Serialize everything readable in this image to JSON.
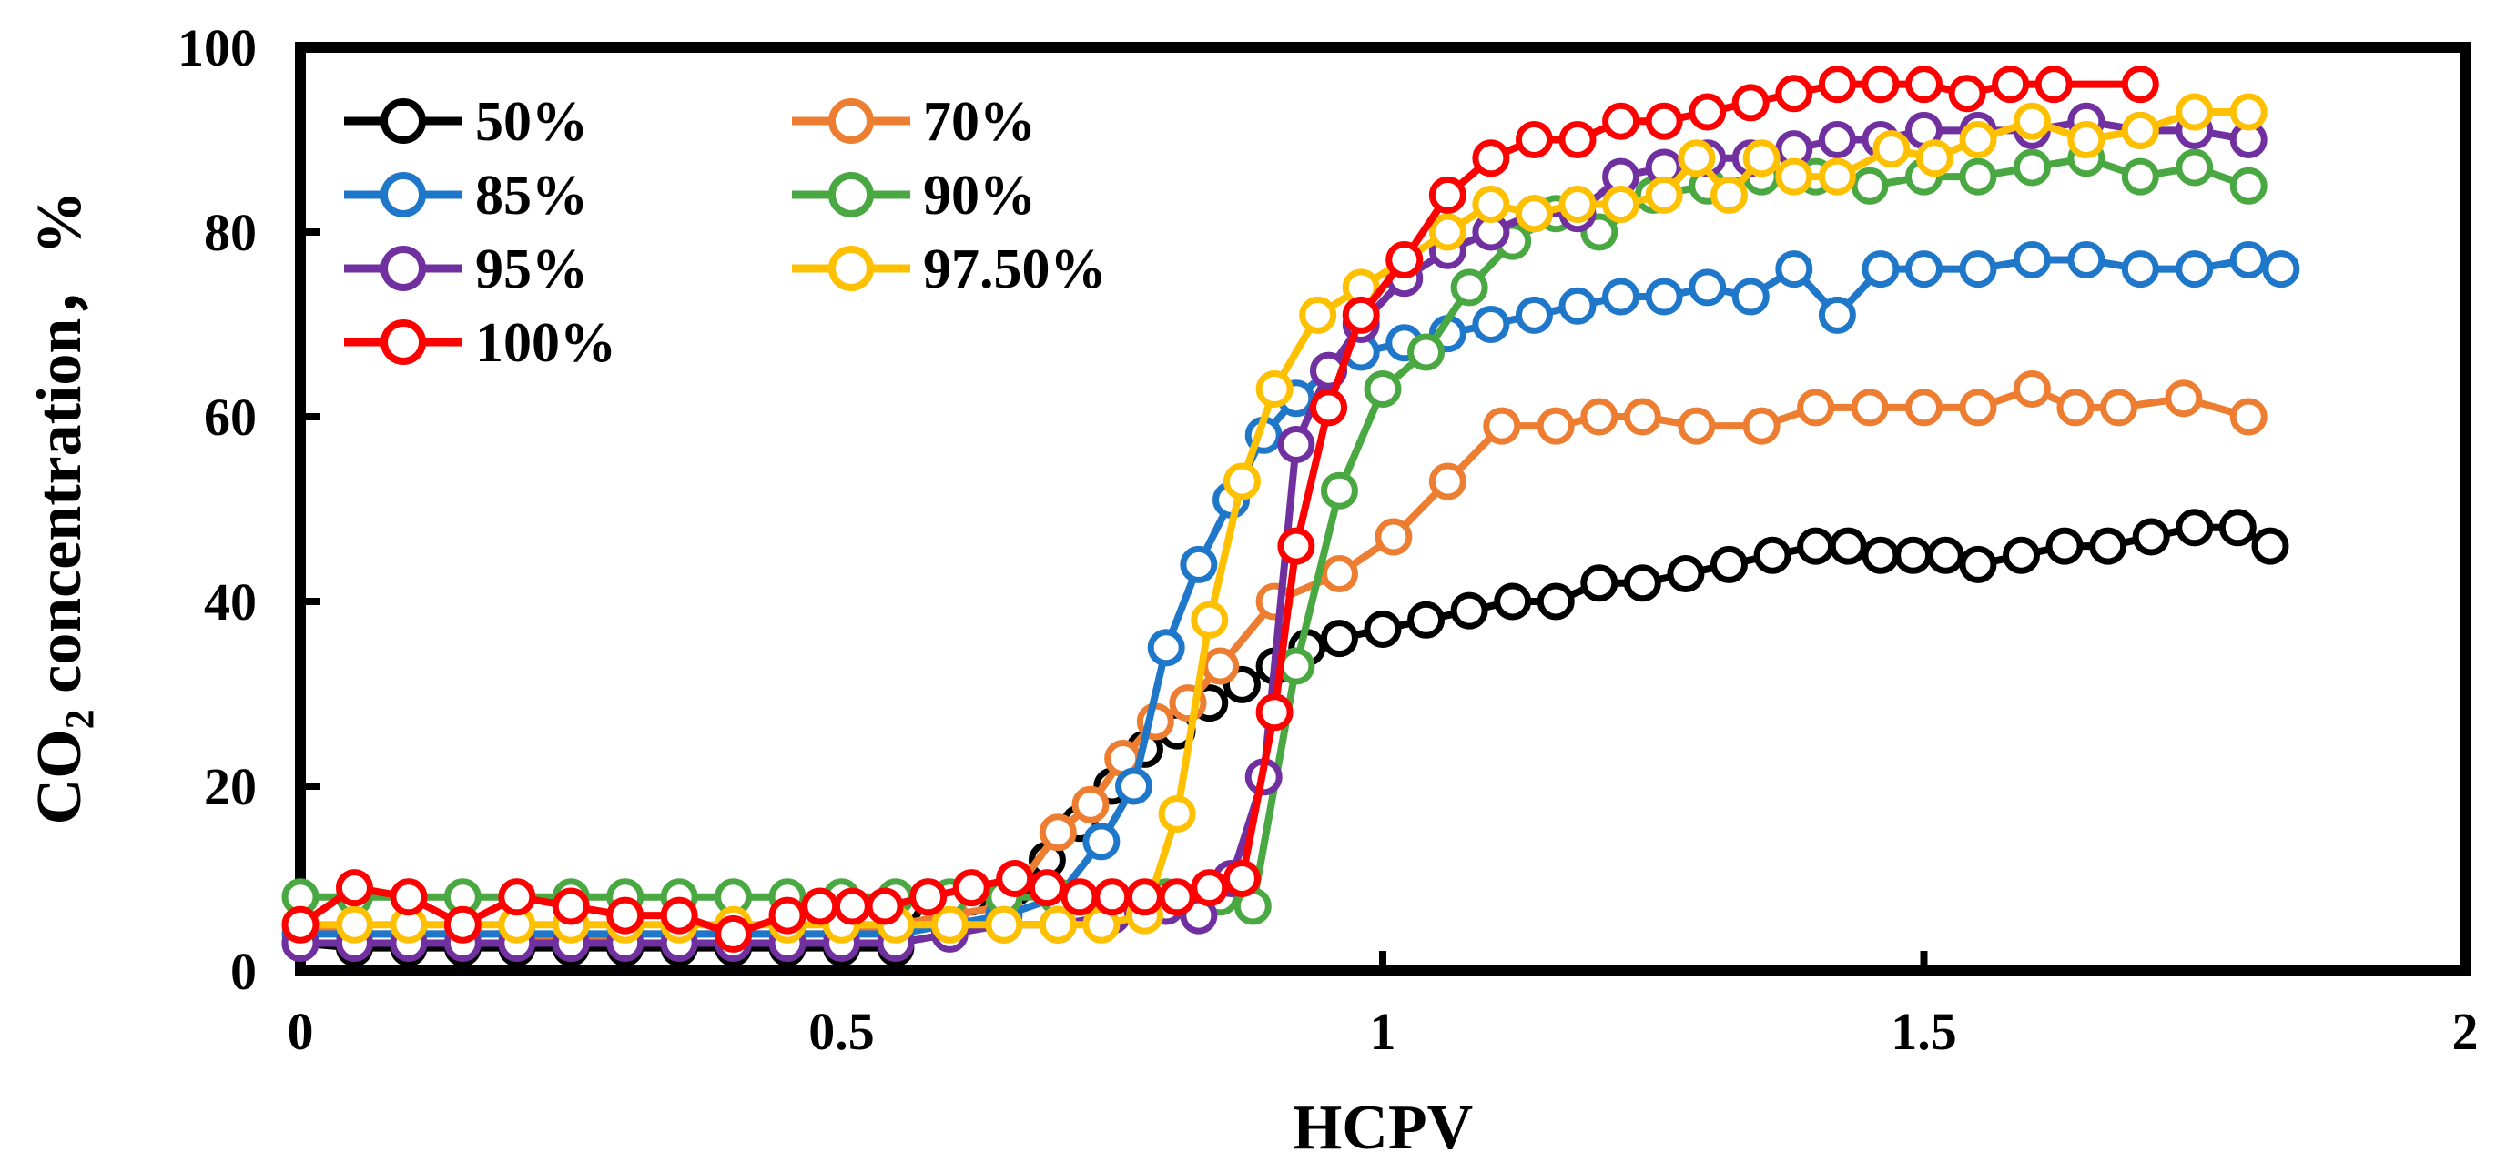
{
  "chart_data": {
    "type": "line",
    "title": "",
    "xlabel": "HCPV",
    "ylabel_main": "CO",
    "ylabel_sub": "2",
    "ylabel_rest": " concentration，%",
    "xlim": [
      0,
      2
    ],
    "ylim": [
      0,
      100
    ],
    "xticks": [
      0,
      0.5,
      1,
      1.5,
      2
    ],
    "xtick_labels": [
      "0",
      "0.5",
      "1",
      "1.5",
      "2"
    ],
    "yticks": [
      0,
      20,
      40,
      60,
      80,
      100
    ],
    "ytick_labels": [
      "0",
      "20",
      "40",
      "60",
      "80",
      "100"
    ],
    "legend_position": "top-left",
    "series": [
      {
        "name": "50%",
        "color": "#000000",
        "x": [
          0,
          0.05,
          0.1,
          0.15,
          0.2,
          0.25,
          0.3,
          0.35,
          0.4,
          0.45,
          0.5,
          0.55,
          0.58,
          0.62,
          0.66,
          0.69,
          0.72,
          0.75,
          0.78,
          0.81,
          0.84,
          0.87,
          0.9,
          0.93,
          0.96,
          1.0,
          1.04,
          1.08,
          1.12,
          1.16,
          1.2,
          1.24,
          1.28,
          1.32,
          1.36,
          1.4,
          1.43,
          1.46,
          1.49,
          1.52,
          1.55,
          1.59,
          1.63,
          1.67,
          1.71,
          1.75,
          1.79,
          1.82
        ],
        "values": [
          3,
          2.5,
          2.5,
          2.5,
          2.5,
          2.5,
          2.5,
          2.5,
          2.5,
          2.5,
          2.5,
          2.5,
          8,
          8,
          9,
          12,
          16,
          20,
          24,
          26,
          29,
          31,
          33,
          35,
          36,
          37,
          38,
          39,
          40,
          40,
          42,
          42,
          43,
          44,
          45,
          46,
          46,
          45,
          45,
          45,
          44,
          45,
          46,
          46,
          47,
          48,
          48,
          46
        ]
      },
      {
        "name": "70%",
        "color": "#ED7D31",
        "x": [
          0,
          0.05,
          0.1,
          0.15,
          0.2,
          0.25,
          0.3,
          0.35,
          0.4,
          0.45,
          0.5,
          0.55,
          0.6,
          0.65,
          0.7,
          0.73,
          0.76,
          0.79,
          0.82,
          0.85,
          0.9,
          0.96,
          1.01,
          1.06,
          1.11,
          1.16,
          1.2,
          1.24,
          1.29,
          1.35,
          1.4,
          1.45,
          1.5,
          1.55,
          1.6,
          1.64,
          1.68,
          1.74,
          1.8
        ],
        "values": [
          5,
          4,
          4,
          4,
          4,
          3,
          4,
          4,
          4,
          4,
          4,
          5,
          6,
          7,
          15,
          18,
          23,
          27,
          29,
          33,
          40,
          43,
          47,
          53,
          59,
          59,
          60,
          60,
          59,
          59,
          61,
          61,
          61,
          61,
          63,
          61,
          61,
          62,
          60
        ]
      },
      {
        "name": "85%",
        "color": "#1F77C9",
        "x": [
          0,
          0.05,
          0.1,
          0.15,
          0.2,
          0.25,
          0.3,
          0.35,
          0.4,
          0.45,
          0.5,
          0.55,
          0.6,
          0.65,
          0.7,
          0.74,
          0.77,
          0.8,
          0.83,
          0.86,
          0.89,
          0.92,
          0.95,
          0.98,
          1.02,
          1.06,
          1.1,
          1.14,
          1.18,
          1.22,
          1.26,
          1.3,
          1.34,
          1.38,
          1.42,
          1.46,
          1.5,
          1.55,
          1.6,
          1.65,
          1.7,
          1.75,
          1.8,
          1.83
        ],
        "values": [
          4,
          4,
          4,
          4,
          4,
          4,
          4,
          4,
          4,
          4,
          4,
          4,
          5,
          6,
          8,
          14,
          20,
          35,
          44,
          51,
          58,
          62,
          65,
          67,
          68,
          69,
          70,
          71,
          72,
          73,
          73,
          74,
          73,
          76,
          71,
          76,
          76,
          76,
          77,
          77,
          76,
          76,
          77,
          76
        ]
      },
      {
        "name": "90%",
        "color": "#4AA843",
        "x": [
          0,
          0.05,
          0.1,
          0.15,
          0.2,
          0.25,
          0.3,
          0.35,
          0.4,
          0.45,
          0.5,
          0.55,
          0.6,
          0.65,
          0.7,
          0.75,
          0.8,
          0.85,
          0.88,
          0.92,
          0.96,
          1.0,
          1.04,
          1.08,
          1.12,
          1.16,
          1.2,
          1.25,
          1.3,
          1.35,
          1.4,
          1.45,
          1.5,
          1.55,
          1.6,
          1.65,
          1.7,
          1.75,
          1.8
        ],
        "values": [
          8,
          8,
          8,
          8,
          8,
          8,
          8,
          8,
          8,
          8,
          8,
          8,
          8,
          8,
          8,
          8,
          8,
          8,
          7,
          33,
          52,
          63,
          67,
          74,
          79,
          82,
          80,
          84,
          85,
          86,
          86,
          85,
          86,
          86,
          87,
          88,
          86,
          87,
          85
        ]
      },
      {
        "name": "95%",
        "color": "#7030A0",
        "x": [
          0,
          0.05,
          0.1,
          0.15,
          0.2,
          0.25,
          0.3,
          0.35,
          0.4,
          0.45,
          0.5,
          0.55,
          0.6,
          0.65,
          0.7,
          0.75,
          0.8,
          0.83,
          0.86,
          0.89,
          0.92,
          0.95,
          0.98,
          1.02,
          1.06,
          1.1,
          1.14,
          1.18,
          1.22,
          1.26,
          1.3,
          1.34,
          1.38,
          1.42,
          1.46,
          1.5,
          1.55,
          1.6,
          1.65,
          1.7,
          1.75,
          1.8
        ],
        "values": [
          3,
          3,
          3,
          3,
          3,
          3,
          3,
          3,
          3,
          3,
          3,
          3,
          4,
          5,
          5,
          6,
          7,
          6,
          10,
          21,
          57,
          65,
          70,
          75,
          78,
          80,
          82,
          82,
          86,
          87,
          88,
          88,
          89,
          90,
          90,
          91,
          91,
          91,
          92,
          91,
          91,
          90
        ]
      },
      {
        "name": "97.50%",
        "color": "#FFC000",
        "x": [
          0,
          0.05,
          0.1,
          0.15,
          0.2,
          0.25,
          0.3,
          0.35,
          0.4,
          0.45,
          0.5,
          0.55,
          0.6,
          0.65,
          0.7,
          0.74,
          0.78,
          0.81,
          0.84,
          0.87,
          0.9,
          0.94,
          0.98,
          1.02,
          1.06,
          1.1,
          1.14,
          1.18,
          1.22,
          1.26,
          1.29,
          1.32,
          1.35,
          1.38,
          1.42,
          1.47,
          1.51,
          1.55,
          1.6,
          1.65,
          1.7,
          1.75,
          1.8
        ],
        "values": [
          5,
          5,
          5,
          5,
          5,
          5,
          5,
          5,
          5,
          5,
          5,
          5,
          5,
          5,
          5,
          5,
          6,
          17,
          38,
          53,
          63,
          71,
          74,
          77,
          80,
          83,
          82,
          83,
          83,
          84,
          88,
          84,
          88,
          86,
          86,
          89,
          88,
          90,
          92,
          90,
          91,
          93,
          93
        ]
      },
      {
        "name": "100%",
        "color": "#FF0000",
        "x": [
          0,
          0.05,
          0.1,
          0.15,
          0.2,
          0.25,
          0.3,
          0.35,
          0.4,
          0.45,
          0.48,
          0.51,
          0.54,
          0.58,
          0.62,
          0.66,
          0.69,
          0.72,
          0.75,
          0.78,
          0.81,
          0.84,
          0.87,
          0.9,
          0.92,
          0.95,
          0.98,
          1.02,
          1.06,
          1.1,
          1.14,
          1.18,
          1.22,
          1.26,
          1.3,
          1.34,
          1.38,
          1.42,
          1.46,
          1.5,
          1.54,
          1.58,
          1.62,
          1.7
        ],
        "values": [
          5,
          9,
          8,
          5,
          8,
          7,
          6,
          6,
          4,
          6,
          7,
          7,
          7,
          8,
          9,
          10,
          9,
          8,
          8,
          8,
          8,
          9,
          10,
          28,
          46,
          61,
          71,
          77,
          84,
          88,
          90,
          90,
          92,
          92,
          93,
          94,
          95,
          96,
          96,
          96,
          95,
          96,
          96,
          96
        ]
      }
    ]
  }
}
